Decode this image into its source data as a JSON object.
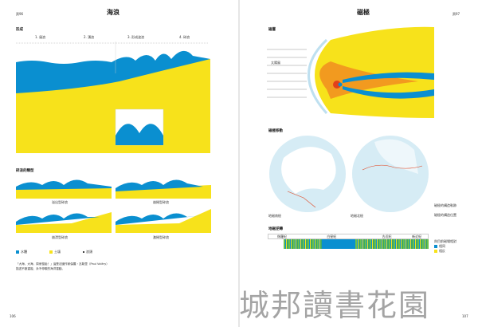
{
  "left": {
    "page_label": "頁96",
    "title": "海浪",
    "section_formation": "形成",
    "stages": [
      "1. 風浪",
      "2. 湧浪",
      "3. 形成波浪",
      "4. 碎浪"
    ],
    "section_types": "碎浪的類型",
    "breaker_types": [
      "溢出型碎浪",
      "崩捲型碎浪",
      "崩潰型碎浪",
      "激捲型碎浪"
    ],
    "legend": [
      "水體",
      "土壤",
      "浪頭"
    ],
    "paragraph1": "「大海，大海，周而復始！」這是法國作家保羅・瓦勒里（Paul Valéry）描述不斷重複、永不停歇的海洋運動。",
    "page_number": "106"
  },
  "right": {
    "page_label": "頁97",
    "title": "磁極",
    "section_magnetosphere": "磁層",
    "solar_wind": "太陽風",
    "section_pole_shift": "磁極移動",
    "south_pole": "地磁南極",
    "north_pole": "地磁北極",
    "section_reversal": "地磁逆轉",
    "periods": [
      "侏羅紀",
      "白堊紀",
      "古近紀",
      "新近紀"
    ],
    "legend_track": "磁極的構造軌跡",
    "legend_position": "磁極的構造位置",
    "legend_reversal_title": "與目前磁場相對",
    "legend_reversal": [
      "相同",
      "相反"
    ],
    "page_number": "107"
  },
  "colors": {
    "water": "#0a8fd0",
    "soil": "#f7e21b",
    "orange": "#f29a1f",
    "red": "#e2401b",
    "ice": "#d6ecf5"
  },
  "watermark": "城邦讀書花園"
}
